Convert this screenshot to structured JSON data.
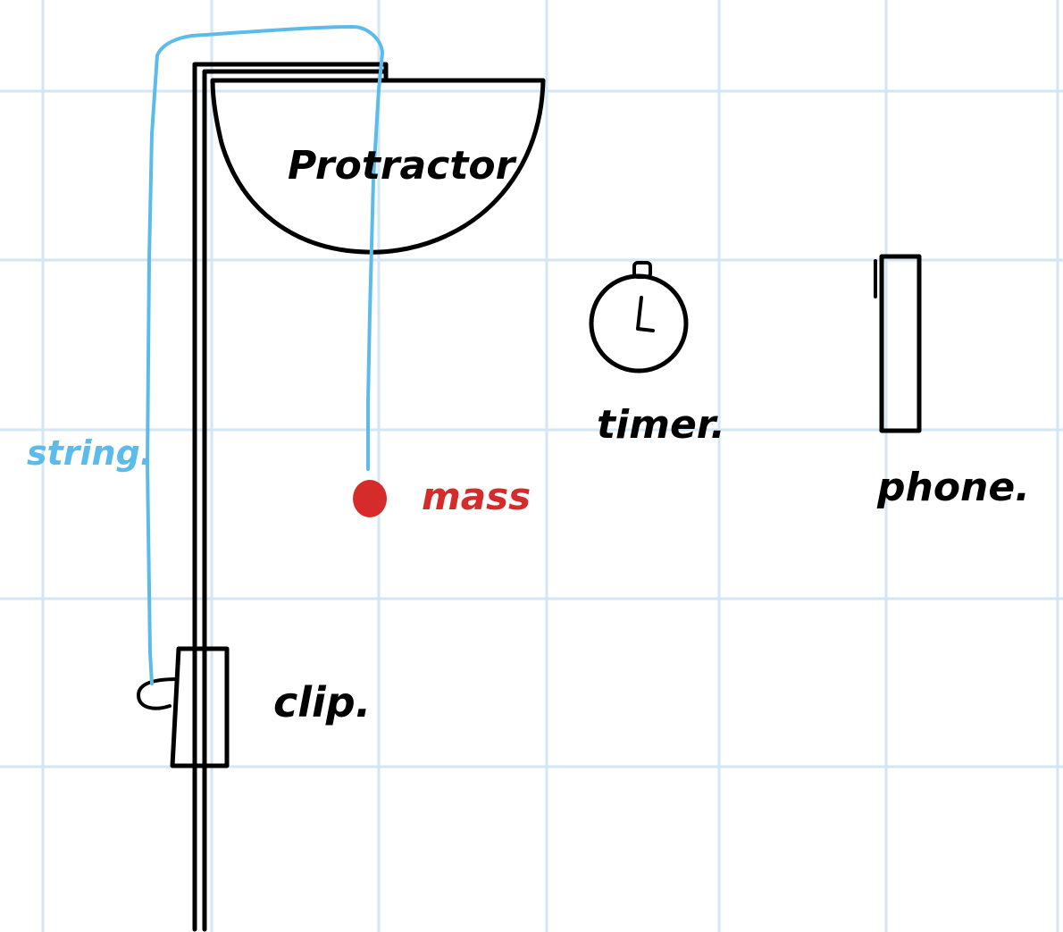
{
  "labels": {
    "protractor": "Protractor",
    "string": "string.",
    "mass": "mass",
    "timer": "timer.",
    "phone": "phone.",
    "clip": "clip."
  },
  "colors": {
    "grid": "#d3e6f3",
    "ink": "#000000",
    "string": "#5bbcec",
    "mass": "#d62b2b"
  }
}
